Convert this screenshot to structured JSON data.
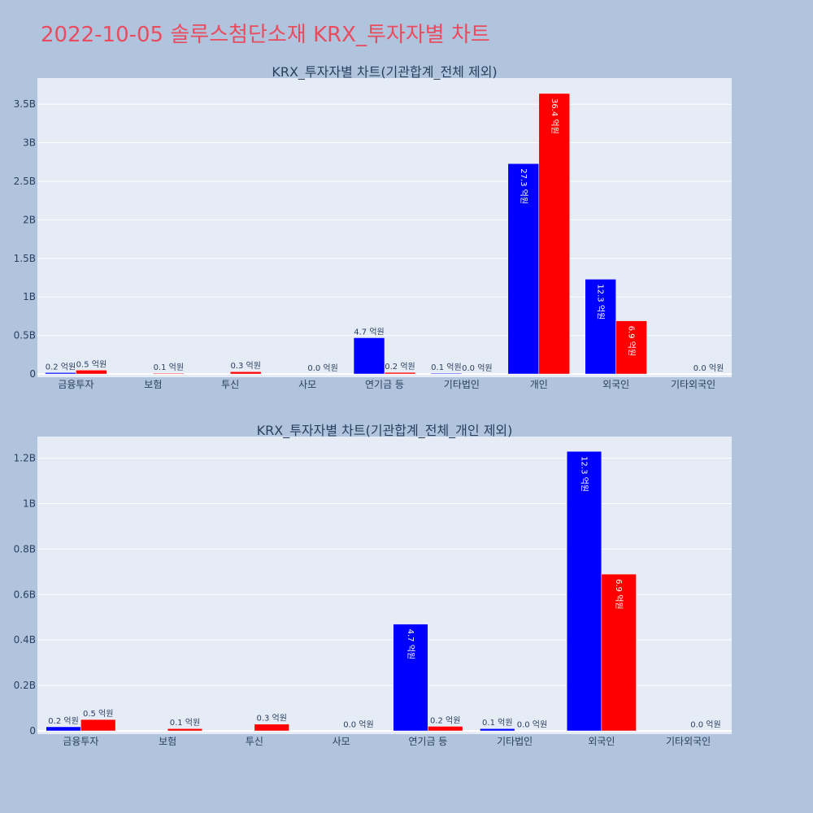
{
  "page_title": "2022-10-05 솔루스첨단소재 KRX_투자자별 차트",
  "colors": {
    "background": "#b0c4de",
    "plot_bg": "#e5ecf6",
    "series_1": "#0000ff",
    "series_2": "#ff0000",
    "title": "#ea4c5f"
  },
  "chart_data": [
    {
      "type": "bar",
      "title": "KRX_투자자별 차트(기관합계_전체 제외)",
      "categories": [
        "금융투자",
        "보험",
        "투신",
        "사모",
        "연기금 등",
        "기타법인",
        "개인",
        "외국인",
        "기타외국인"
      ],
      "series": [
        {
          "values": [
            0.018,
            0,
            0,
            0,
            0.47,
            0.01,
            2.73,
            1.23,
            0
          ],
          "labels": [
            "0.2 억원",
            "",
            "",
            "",
            "4.7 억원",
            "0.1 억원",
            "27.3 억원",
            "12.3 억원",
            ""
          ]
        },
        {
          "values": [
            0.05,
            0.01,
            0.03,
            0.001,
            0.02,
            0.001,
            3.64,
            0.69,
            0.001
          ],
          "labels": [
            "0.5 억원",
            "0.1 억원",
            "0.3 억원",
            "0.0 억원",
            "0.2 억원",
            "0.0 억원",
            "36.4 억원",
            "6.9 억원",
            "0.0 억원"
          ]
        }
      ],
      "yticks": [
        0,
        0.5,
        1,
        1.5,
        2,
        2.5,
        3,
        3.5
      ],
      "ytick_labels": [
        "0",
        "0.5B",
        "1B",
        "1.5B",
        "2B",
        "2.5B",
        "3B",
        "3.5B"
      ],
      "ylim": [
        0,
        3.84
      ],
      "grid": true
    },
    {
      "type": "bar",
      "title": "KRX_투자자별 차트(기관합계_전체_개인 제외)",
      "categories": [
        "금융투자",
        "보험",
        "투신",
        "사모",
        "연기금 등",
        "기타법인",
        "외국인",
        "기타외국인"
      ],
      "series": [
        {
          "values": [
            0.018,
            0,
            0,
            0,
            0.47,
            0.01,
            1.23,
            0
          ],
          "labels": [
            "0.2 억원",
            "",
            "",
            "",
            "4.7 억원",
            "0.1 억원",
            "12.3 억원",
            ""
          ]
        },
        {
          "values": [
            0.05,
            0.01,
            0.03,
            0.001,
            0.02,
            0.001,
            0.69,
            0.001
          ],
          "labels": [
            "0.5 억원",
            "0.1 억원",
            "0.3 억원",
            "0.0 억원",
            "0.2 억원",
            "0.0 억원",
            "6.9 억원",
            "0.0 억원"
          ]
        }
      ],
      "yticks": [
        0,
        0.2,
        0.4,
        0.6,
        0.8,
        1,
        1.2
      ],
      "ytick_labels": [
        "0",
        "0.2B",
        "0.4B",
        "0.6B",
        "0.8B",
        "1B",
        "1.2B"
      ],
      "ylim": [
        0,
        1.295
      ],
      "grid": true
    }
  ]
}
